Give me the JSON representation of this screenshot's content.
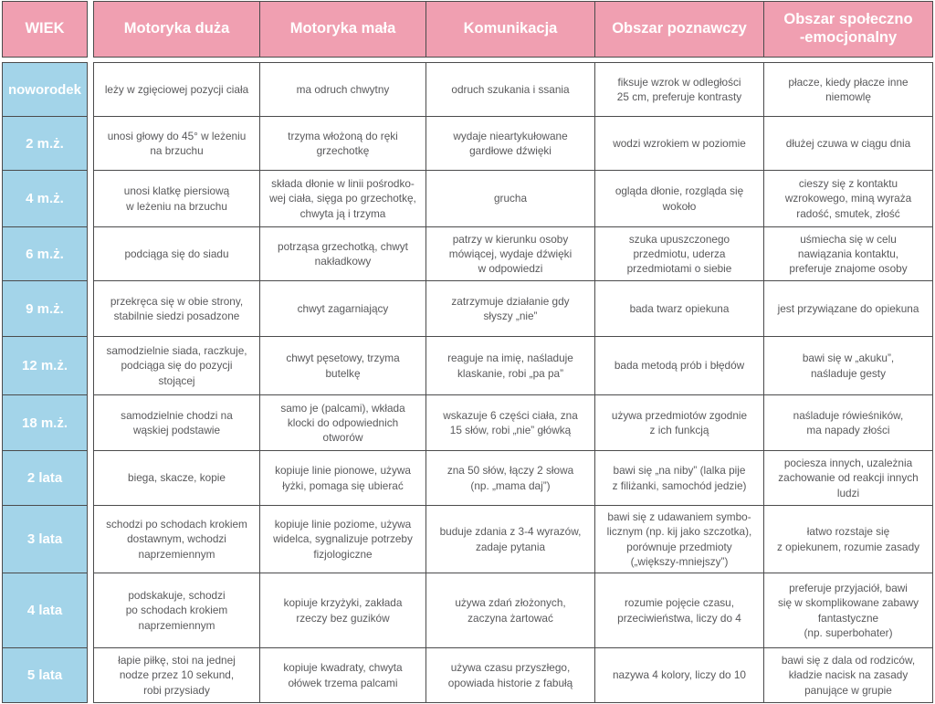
{
  "colors": {
    "header_bg": "#F09FB1",
    "age_bg": "#A3D4E9",
    "header_text": "#FFFFFF",
    "body_text": "#59595B",
    "border": "#4B4B4C",
    "page_bg": "#FFFFFF"
  },
  "table": {
    "age_header": "WIEK",
    "column_headers": [
      "Motoryka duża",
      "Motoryka mała",
      "Komunikacja",
      "Obszar poznawczy",
      "Obszar społeczno\n-emocjonalny"
    ],
    "rows": [
      {
        "age": "noworodek",
        "cells": [
          "leży w zgięciowej pozycji ciała",
          "ma odruch chwytny",
          "odruch szukania i ssania",
          "fiksuje wzrok w odległości\n25 cm, preferuje kontrasty",
          "płacze, kiedy płacze inne\nniemowlę"
        ]
      },
      {
        "age": "2 m.ż.",
        "cells": [
          "unosi głowy do 45° w leżeniu\nna brzuchu",
          "trzyma włożoną do ręki\ngrzechotkę",
          "wydaje nieartykułowane\ngardłowe dźwięki",
          "wodzi wzrokiem w poziomie",
          "dłużej czuwa w ciągu dnia"
        ]
      },
      {
        "age": "4 m.ż.",
        "cells": [
          "unosi klatkę piersiową\nw leżeniu na brzuchu",
          "składa dłonie w linii pośrodko-\nwej ciała, sięga po grzechotkę,\nchwyta ją i trzyma",
          "grucha",
          "ogląda dłonie, rozgląda się\nwokoło",
          "cieszy się z kontaktu\nwzrokowego, miną wyraża\nradość, smutek, złość"
        ]
      },
      {
        "age": "6 m.ż.",
        "cells": [
          "podciąga się do siadu",
          "potrząsa grzechotką, chwyt\nnakładkowy",
          "patrzy w kierunku osoby\nmówiącej, wydaje dźwięki\nw odpowiedzi",
          "szuka upuszczonego\nprzedmiotu, uderza\nprzedmiotami o siebie",
          "uśmiecha się w celu\nnawiązania kontaktu,\npreferuje znajome osoby"
        ]
      },
      {
        "age": "9 m.ż.",
        "cells": [
          "przekręca się w obie strony,\nstabilnie siedzi posadzone",
          "chwyt zagarniający",
          "zatrzymuje działanie gdy\nsłyszy „nie”",
          "bada twarz opiekuna",
          "jest przywiązane do opiekuna"
        ]
      },
      {
        "age": "12 m.ż.",
        "cells": [
          "samodzielnie siada, raczkuje,\npodciąga się do pozycji\nstojącej",
          "chwyt pęsetowy, trzyma\nbutelkę",
          "reaguje na imię, naśladuje\nklaskanie, robi „pa pa”",
          "bada metodą prób i błędów",
          "bawi się w „akuku”,\nnaśladuje gesty"
        ]
      },
      {
        "age": "18 m.ż.",
        "cells": [
          "samodzielnie chodzi na\nwąskiej podstawie",
          "samo je (palcami), wkłada\nklocki do odpowiednich\notworów",
          "wskazuje 6 części ciała, zna\n15 słów, robi „nie” główką",
          "używa przedmiotów zgodnie\nz ich funkcją",
          "naśladuje rówieśników,\nma napady złości"
        ]
      },
      {
        "age": "2 lata",
        "cells": [
          "biega, skacze, kopie",
          "kopiuje linie pionowe, używa\nłyżki, pomaga się ubierać",
          "zna 50 słów, łączy 2 słowa\n(np. „mama daj”)",
          "bawi się „na niby” (lalka pije\nz filiżanki, samochód jedzie)",
          "pociesza innych, uzależnia\nzachowanie od reakcji innych\nludzi"
        ]
      },
      {
        "age": "3 lata",
        "cells": [
          "schodzi po schodach krokiem\ndostawnym, wchodzi\nnaprzemiennym",
          "kopiuje linie poziome, używa\nwidelca, sygnalizuje potrzeby\nfizjologiczne",
          "buduje zdania z 3-4 wyrazów,\nzadaje pytania",
          "bawi się z udawaniem symbo-\nlicznym (np. kij jako szczotka),\nporównuje przedmioty\n(„większy-mniejszy”)",
          "łatwo rozstaje się\nz opiekunem, rozumie zasady"
        ]
      },
      {
        "age": "4 lata",
        "cells": [
          "podskakuje, schodzi\npo schodach krokiem\nnaprzemiennym",
          "kopiuje krzyżyki, zakłada\nrzeczy bez guzików",
          "używa zdań złożonych,\nzaczyna żartować",
          "rozumie pojęcie czasu,\nprzeciwieństwa, liczy do 4",
          "preferuje przyjaciół, bawi\nsię w skomplikowane zabawy\nfantastyczne\n(np. superbohater)"
        ]
      },
      {
        "age": "5 lata",
        "cells": [
          "łapie piłkę, stoi na jednej\nnodze przez 10 sekund,\nrobi przysiady",
          "kopiuje kwadraty, chwyta\nołówek trzema palcami",
          "używa czasu przyszłego,\nopowiada historie z fabułą",
          "nazywa 4 kolory, liczy do 10",
          "bawi się z dala od rodziców,\nkładzie nacisk na zasady\npanujące w grupie"
        ]
      }
    ]
  }
}
